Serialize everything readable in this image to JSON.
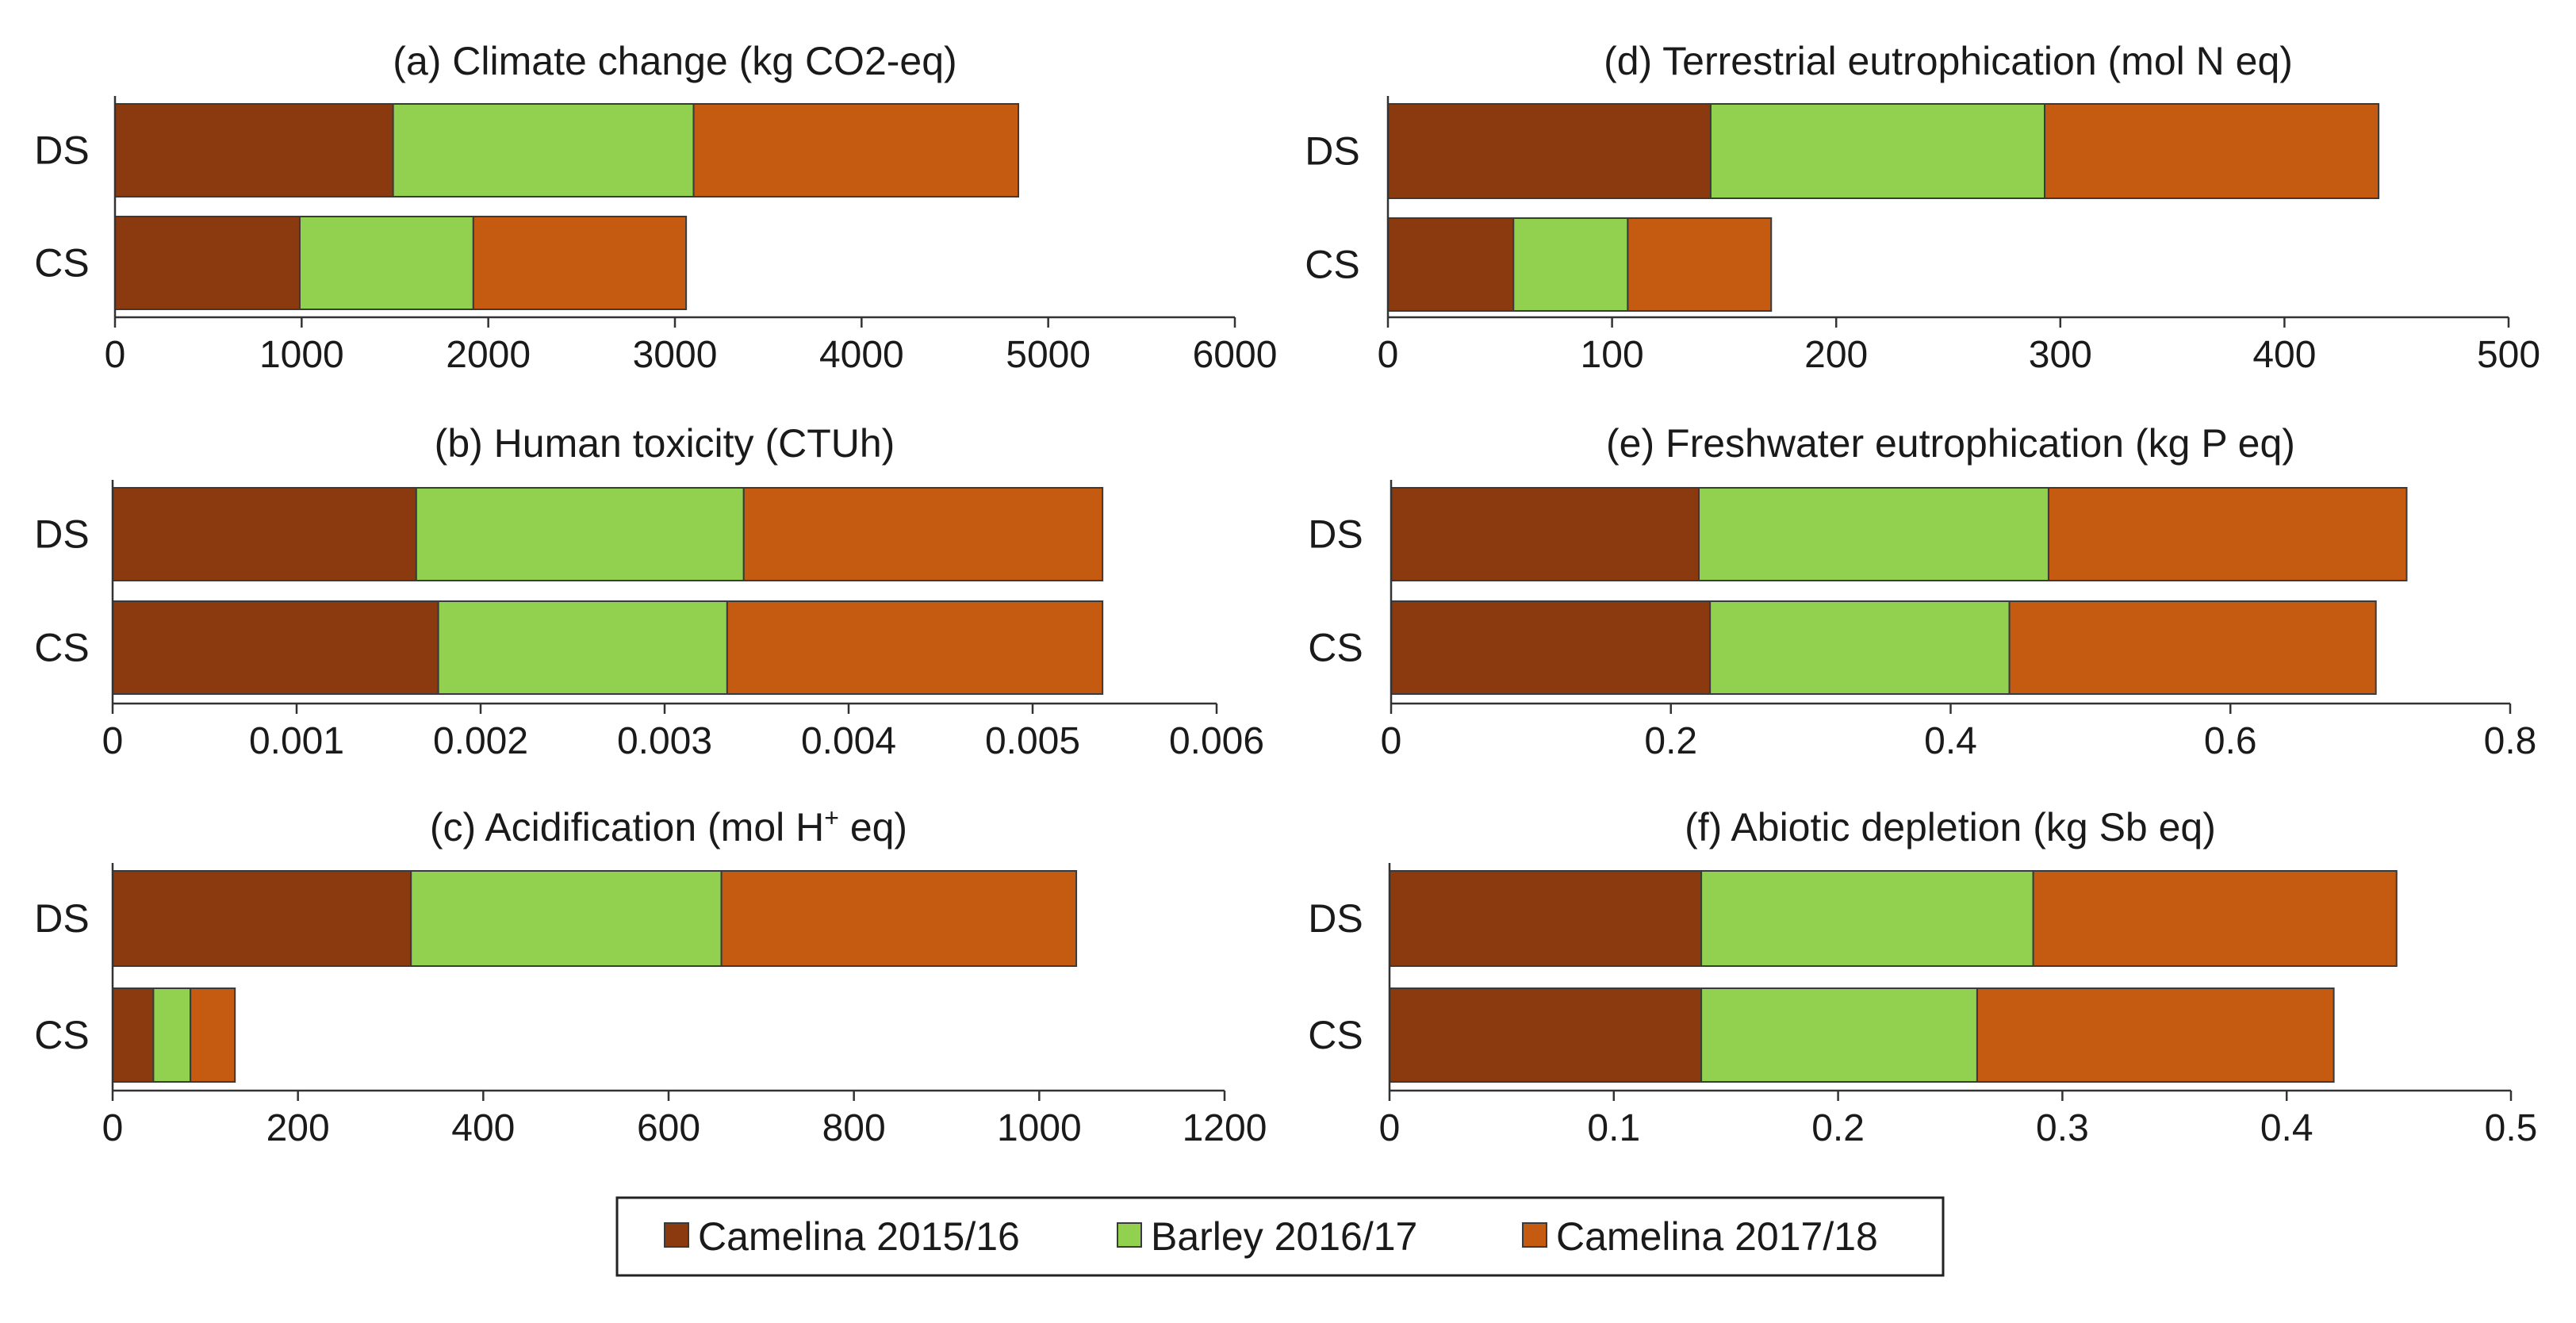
{
  "colors": {
    "Camelina 2015/16": "#8b3a10",
    "Barley 2016/17": "#92d050",
    "Camelina 2017/18": "#c55a11"
  },
  "legend": {
    "items": [
      "Camelina 2015/16",
      "Barley 2016/17",
      "Camelina 2017/18"
    ]
  },
  "chart_data": [
    {
      "id": "a",
      "type": "bar",
      "orientation": "horizontal",
      "stacked": true,
      "title": "(a) Climate change (kg CO2-eq)",
      "categories": [
        "DS",
        "CS"
      ],
      "series": [
        {
          "name": "Camelina 2015/16",
          "values": [
            1490,
            990
          ]
        },
        {
          "name": "Barley 2016/17",
          "values": [
            1610,
            930
          ]
        },
        {
          "name": "Camelina 2017/18",
          "values": [
            1740,
            1140
          ]
        }
      ],
      "xlim": [
        0,
        6000
      ],
      "ticks": [
        0,
        1000,
        2000,
        3000,
        4000,
        5000,
        6000
      ],
      "tick_labels": [
        "0",
        "1000",
        "2000",
        "3000",
        "4000",
        "5000",
        "6000"
      ]
    },
    {
      "id": "b",
      "type": "bar",
      "orientation": "horizontal",
      "stacked": true,
      "title": "(b) Human toxicity (CTUh)",
      "categories": [
        "DS",
        "CS"
      ],
      "series": [
        {
          "name": "Camelina 2015/16",
          "values": [
            0.00165,
            0.00177
          ]
        },
        {
          "name": "Barley 2016/17",
          "values": [
            0.00178,
            0.00157
          ]
        },
        {
          "name": "Camelina 2017/18",
          "values": [
            0.00195,
            0.00204
          ]
        }
      ],
      "xlim": [
        0,
        0.006
      ],
      "ticks": [
        0,
        0.001,
        0.002,
        0.003,
        0.004,
        0.005,
        0.006
      ],
      "tick_labels": [
        "0",
        "0.001",
        "0.002",
        "0.003",
        "0.004",
        "0.005",
        "0.006"
      ]
    },
    {
      "id": "c",
      "type": "bar",
      "orientation": "horizontal",
      "stacked": true,
      "title": "(c) Acidification (mol H",
      "title_sup": "+",
      "title_tail": " eq)",
      "categories": [
        "DS",
        "CS"
      ],
      "series": [
        {
          "name": "Camelina 2015/16",
          "values": [
            322,
            44
          ]
        },
        {
          "name": "Barley 2016/17",
          "values": [
            335,
            40
          ]
        },
        {
          "name": "Camelina 2017/18",
          "values": [
            383,
            48
          ]
        }
      ],
      "xlim": [
        0,
        1200
      ],
      "ticks": [
        0,
        200,
        400,
        600,
        800,
        1000,
        1200
      ],
      "tick_labels": [
        "0",
        "200",
        "400",
        "600",
        "800",
        "1000",
        "1200"
      ]
    },
    {
      "id": "d",
      "type": "bar",
      "orientation": "horizontal",
      "stacked": true,
      "title": "(d) Terrestrial eutrophication (mol N eq)",
      "categories": [
        "DS",
        "CS"
      ],
      "series": [
        {
          "name": "Camelina 2015/16",
          "values": [
            144,
            56
          ]
        },
        {
          "name": "Barley 2016/17",
          "values": [
            149,
            51
          ]
        },
        {
          "name": "Camelina 2017/18",
          "values": [
            149,
            64
          ]
        }
      ],
      "xlim": [
        0,
        500
      ],
      "ticks": [
        0,
        100,
        200,
        300,
        400,
        500
      ],
      "tick_labels": [
        "0",
        "100",
        "200",
        "300",
        "400",
        "500"
      ]
    },
    {
      "id": "e",
      "type": "bar",
      "orientation": "horizontal",
      "stacked": true,
      "title": "(e) Freshwater eutrophication (kg P eq)",
      "categories": [
        "DS",
        "CS"
      ],
      "series": [
        {
          "name": "Camelina 2015/16",
          "values": [
            0.22,
            0.228
          ]
        },
        {
          "name": "Barley 2016/17",
          "values": [
            0.25,
            0.214
          ]
        },
        {
          "name": "Camelina 2017/18",
          "values": [
            0.256,
            0.262
          ]
        }
      ],
      "xlim": [
        0,
        0.8
      ],
      "ticks": [
        0,
        0.2,
        0.4,
        0.6,
        0.8
      ],
      "tick_labels": [
        "0",
        "0.2",
        "0.4",
        "0.6",
        "0.8"
      ]
    },
    {
      "id": "f",
      "type": "bar",
      "orientation": "horizontal",
      "stacked": true,
      "title": "(f) Abiotic depletion (kg Sb eq)",
      "categories": [
        "DS",
        "CS"
      ],
      "series": [
        {
          "name": "Camelina 2015/16",
          "values": [
            0.139,
            0.139
          ]
        },
        {
          "name": "Barley 2016/17",
          "values": [
            0.148,
            0.123
          ]
        },
        {
          "name": "Camelina 2017/18",
          "values": [
            0.162,
            0.159
          ]
        }
      ],
      "xlim": [
        0,
        0.5
      ],
      "ticks": [
        0,
        0.1,
        0.2,
        0.3,
        0.4,
        0.5
      ],
      "tick_labels": [
        "0",
        "0.1",
        "0.2",
        "0.3",
        "0.4",
        "0.5"
      ]
    }
  ]
}
